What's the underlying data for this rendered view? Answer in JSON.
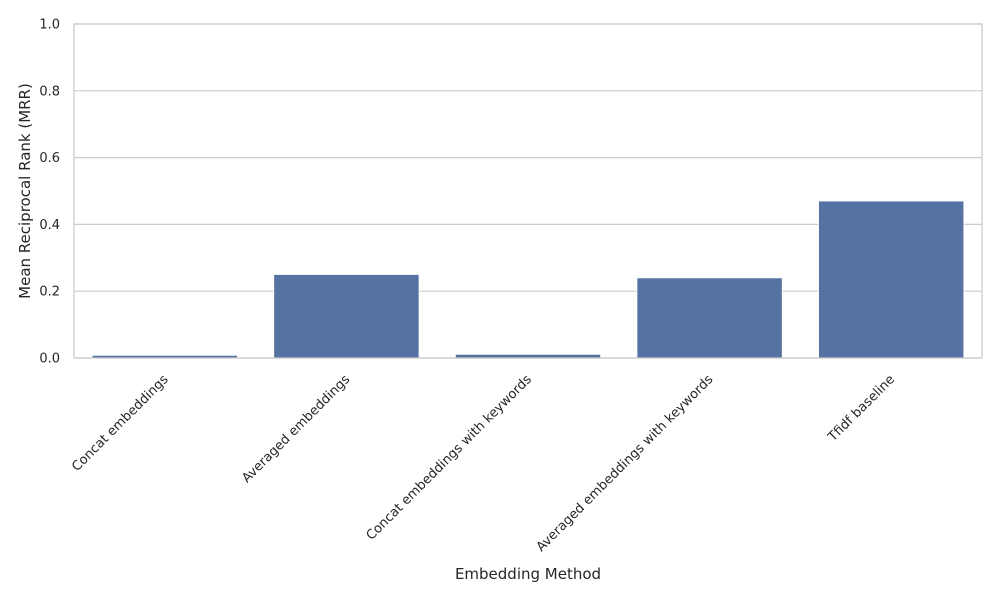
{
  "chart_data": {
    "type": "bar",
    "title": "",
    "xlabel": "Embedding Method",
    "ylabel": "Mean Reciprocal Rank (MRR)",
    "categories": [
      "Concat embeddings",
      "Averaged embeddings",
      "Concat embeddings with keywords",
      "Averaged embeddings with keywords",
      "Tfidf baseline"
    ],
    "values": [
      0.008,
      0.25,
      0.011,
      0.24,
      0.47
    ],
    "ylim": [
      0,
      1.0
    ],
    "yticks": [
      "0.0",
      "0.2",
      "0.4",
      "0.6",
      "0.8",
      "1.0"
    ],
    "grid": "horizontal",
    "colors": {
      "bar": "#5572a3",
      "grid": "#cccccc",
      "frame": "#cccccc"
    }
  }
}
